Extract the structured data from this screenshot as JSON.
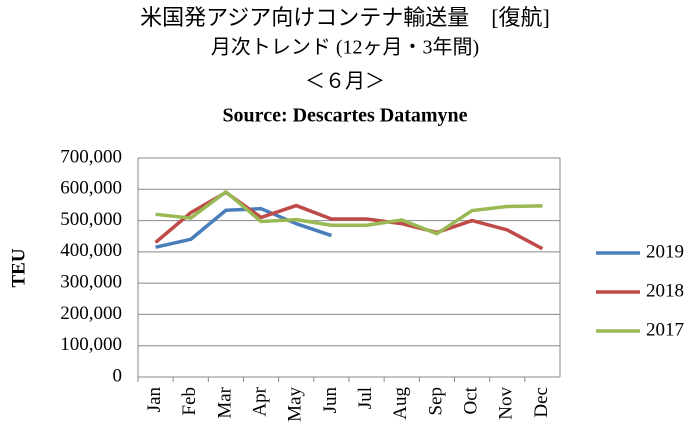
{
  "chart_data": {
    "type": "line",
    "title": "米国発アジア向けコンテナ輸送量　[復航]",
    "subtitle": [
      "月次トレンド (12ヶ月・3年間)",
      "＜６月＞",
      "Source: Descartes Datamyne"
    ],
    "y_label": "TEU",
    "categories": [
      "Jan",
      "Feb",
      "Mar",
      "Apr",
      "May",
      "Jun",
      "Jul",
      "Aug",
      "Sep",
      "Oct",
      "Nov",
      "Dec"
    ],
    "series": [
      {
        "name": "2019",
        "color": "#4a7ebb",
        "values": [
          415000,
          440000,
          533000,
          538000,
          490000,
          452000,
          null,
          null,
          null,
          null,
          null,
          null
        ]
      },
      {
        "name": "2018",
        "color": "#be4b48",
        "values": [
          430000,
          525000,
          590000,
          510000,
          548000,
          505000,
          505000,
          490000,
          462000,
          500000,
          470000,
          410000
        ]
      },
      {
        "name": "2017",
        "color": "#98b954",
        "values": [
          520000,
          508000,
          592000,
          497000,
          503000,
          485000,
          485000,
          502000,
          458000,
          532000,
          545000,
          547000
        ]
      }
    ],
    "ylim": [
      0,
      700000
    ],
    "yticks": [
      0,
      {
        "value": 100000,
        "label": "100,000"
      },
      {
        "value": 200000,
        "label": "200,000"
      },
      {
        "value": 300000,
        "label": "300,000"
      },
      {
        "value": 400000,
        "label": "400,000"
      },
      {
        "value": 500000,
        "label": "500,000"
      },
      {
        "value": 600000,
        "label": "600,000"
      },
      {
        "value": 700000,
        "label": "700,000"
      }
    ],
    "grid": true,
    "legend": "right"
  }
}
